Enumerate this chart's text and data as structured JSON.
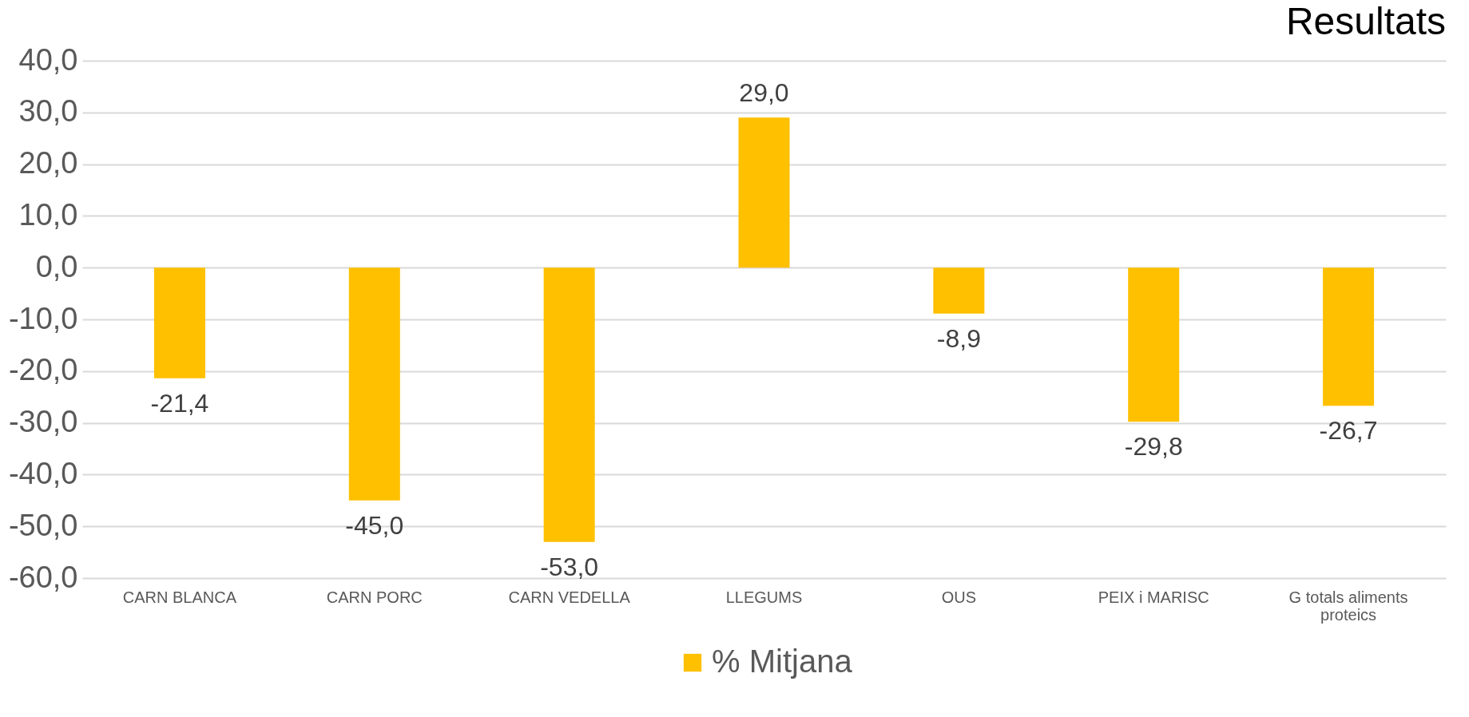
{
  "chart_data": {
    "type": "bar",
    "title": "Resultats",
    "categories": [
      "CARN BLANCA",
      "CARN PORC",
      "CARN VEDELLA",
      "LLEGUMS",
      "OUS",
      "PEIX i MARISC",
      "G totals aliments proteics"
    ],
    "series": [
      {
        "name": "% Mitjana",
        "color": "#ffc000",
        "values": [
          -21.4,
          -45.0,
          -53.0,
          29.0,
          -8.9,
          -29.8,
          -26.7
        ],
        "value_labels": [
          "-21,4",
          "-45,0",
          "-53,0",
          "29,0",
          "-8,9",
          "-29,8",
          "-26,7"
        ]
      }
    ],
    "ylim": [
      -60,
      40
    ],
    "yticks": [
      {
        "value": -60,
        "label": "-60,0"
      },
      {
        "value": -50,
        "label": "-50,0"
      },
      {
        "value": -40,
        "label": "-40,0"
      },
      {
        "value": -30,
        "label": "-30,0"
      },
      {
        "value": -20,
        "label": "-20,0"
      },
      {
        "value": -10,
        "label": "-10,0"
      },
      {
        "value": 0,
        "label": "0,0"
      },
      {
        "value": 10,
        "label": "10,0"
      },
      {
        "value": 20,
        "label": "20,0"
      },
      {
        "value": 30,
        "label": "30,0"
      },
      {
        "value": 40,
        "label": "40,0"
      }
    ],
    "grid": "y",
    "legend": "bottom"
  }
}
